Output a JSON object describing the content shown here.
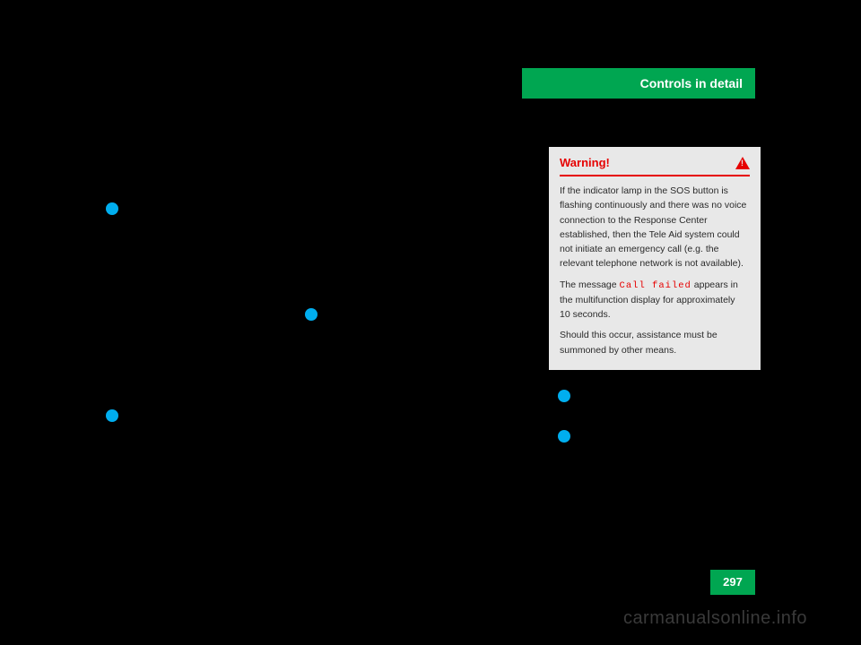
{
  "header": {
    "title": "Controls in detail"
  },
  "page_number": "297",
  "watermark": "carmanualsonline.info",
  "warning_box": {
    "title": "Warning!",
    "para1": "If the indicator lamp in the SOS button is flashing continuously and there was no voice connection to the Response Center established, then the Tele Aid system could not initiate an emergency call (e.g. the relevant telephone network is not available).",
    "para2_pre": "The message ",
    "call_failed": "Call failed",
    "para2_post": " appears in the multifunction display for approximately 10 seconds.",
    "para3": "Should this occur, assistance must be summoned by other means."
  },
  "colors": {
    "background": "#000000",
    "tab_green": "#00a651",
    "bullet_blue": "#00aeef",
    "warning_red": "#e60000",
    "box_bg": "#e8e8e8",
    "watermark_gray": "#3a3a3a"
  }
}
